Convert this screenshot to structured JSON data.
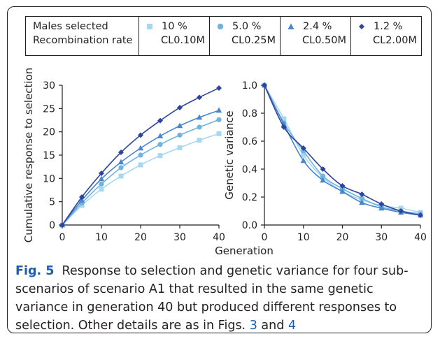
{
  "legend": {
    "header_line1": "Males selected",
    "header_line2": "Recombination rate",
    "entries": [
      {
        "males": "10 %",
        "recomb": "CL0.10M",
        "marker": "square",
        "color": "#a8d8f0"
      },
      {
        "males": "5.0 %",
        "recomb": "CL0.25M",
        "marker": "circle",
        "color": "#6fb3e0"
      },
      {
        "males": "2.4 %",
        "recomb": "CL0.50M",
        "marker": "triangle",
        "color": "#4a86cc"
      },
      {
        "males": "1.2 %",
        "recomb": "CL2.00M",
        "marker": "diamond",
        "color": "#2e45a0"
      }
    ]
  },
  "chart_data": [
    {
      "type": "line",
      "xlabel": "Generation",
      "ylabel": "Cumulative response to selection",
      "xlim": [
        0,
        40
      ],
      "ylim": [
        0,
        30
      ],
      "xticks": [
        0,
        10,
        20,
        30,
        40
      ],
      "yticks": [
        0,
        5,
        10,
        15,
        20,
        25,
        30
      ],
      "x": [
        0,
        5,
        10,
        15,
        20,
        25,
        30,
        35,
        40
      ],
      "series": [
        {
          "name": "10 % CL0.10M",
          "values": [
            0,
            4.2,
            7.7,
            10.5,
            12.9,
            14.9,
            16.6,
            18.2,
            19.6
          ]
        },
        {
          "name": "5.0 % CL0.25M",
          "values": [
            0,
            4.7,
            8.8,
            12.3,
            15.0,
            17.3,
            19.3,
            21.0,
            22.6
          ]
        },
        {
          "name": "2.4 % CL0.50M",
          "values": [
            0,
            5.3,
            9.9,
            13.5,
            16.5,
            19.1,
            21.3,
            23.1,
            24.6
          ]
        },
        {
          "name": "1.2 % CL2.00M",
          "values": [
            0,
            6.0,
            11.1,
            15.6,
            19.3,
            22.4,
            25.2,
            27.4,
            29.4
          ]
        }
      ]
    },
    {
      "type": "line",
      "xlabel": "",
      "ylabel": "Genetic variance",
      "xlim": [
        0,
        40
      ],
      "ylim": [
        0,
        1.0
      ],
      "xticks": [
        0,
        10,
        20,
        30,
        40
      ],
      "yticks": [
        "0.0",
        "0.2",
        "0.4",
        "0.6",
        "0.8",
        "1.0"
      ],
      "x": [
        0,
        5,
        10,
        15,
        20,
        25,
        30,
        35,
        40
      ],
      "series": [
        {
          "name": "10 % CL0.10M",
          "values": [
            1.0,
            0.76,
            0.5,
            0.34,
            0.24,
            0.18,
            0.14,
            0.12,
            0.09
          ]
        },
        {
          "name": "5.0 % CL0.25M",
          "values": [
            1.0,
            0.73,
            0.53,
            0.35,
            0.26,
            0.19,
            0.13,
            0.1,
            0.08
          ]
        },
        {
          "name": "2.4 % CL0.50M",
          "values": [
            1.0,
            0.72,
            0.46,
            0.32,
            0.24,
            0.16,
            0.12,
            0.09,
            0.07
          ]
        },
        {
          "name": "1.2 % CL2.00M",
          "values": [
            1.0,
            0.7,
            0.55,
            0.4,
            0.28,
            0.22,
            0.15,
            0.1,
            0.07
          ]
        }
      ]
    }
  ],
  "caption": {
    "label": "Fig. 5",
    "text": "Response to selection and genetic variance for four sub-scenarios of scenario A1 that resulted in the same genetic variance in generation 40 but produced different responses to selection. Other details are as in Figs.",
    "ref1": "3",
    "and": "and",
    "ref2": "4"
  }
}
